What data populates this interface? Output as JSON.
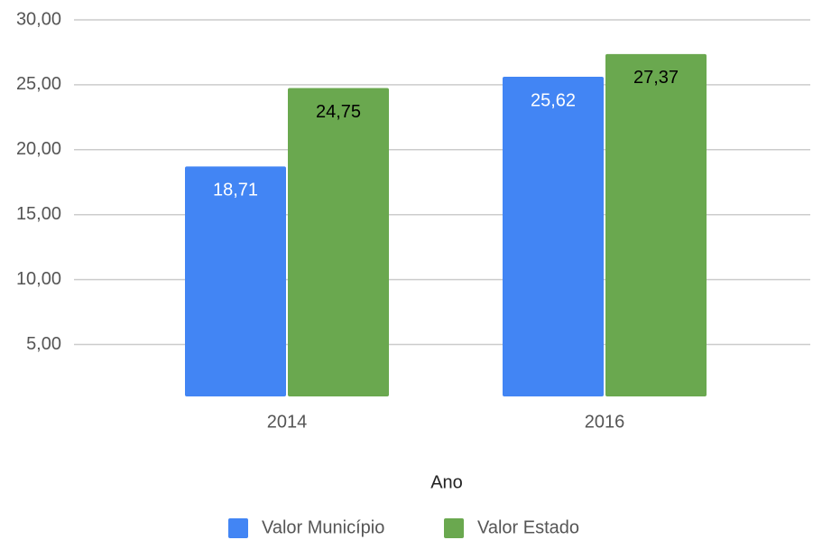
{
  "chart_data": {
    "type": "bar",
    "x_label": "Ano",
    "categories": [
      "2014",
      "2016"
    ],
    "series": [
      {
        "name": "Valor Município",
        "color": "#4285f4",
        "values": [
          18.71,
          25.62
        ],
        "value_labels": [
          "18,71",
          "25,62"
        ],
        "label_color": "#ffffff"
      },
      {
        "name": "Valor Estado",
        "color": "#6aa84f",
        "values": [
          24.75,
          27.37
        ],
        "value_labels": [
          "24,75",
          "27,37"
        ],
        "label_color": "#000000"
      }
    ],
    "ylim": [
      1,
      30
    ],
    "yticks": [
      {
        "value": 5,
        "label": "5,00"
      },
      {
        "value": 10,
        "label": "10,00"
      },
      {
        "value": 15,
        "label": "15,00"
      },
      {
        "value": 20,
        "label": "20,00"
      },
      {
        "value": 25,
        "label": "25,00"
      },
      {
        "value": 30,
        "label": "30,00"
      }
    ],
    "grid": true,
    "legend": "bottom"
  }
}
